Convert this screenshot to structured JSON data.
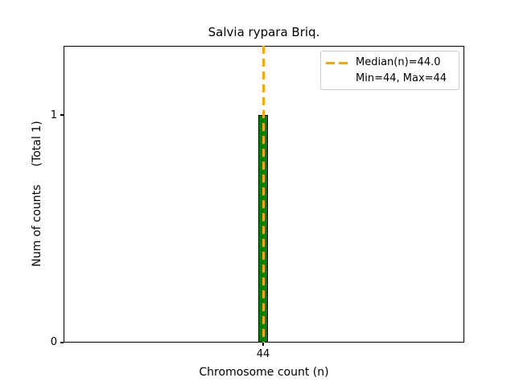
{
  "chart_data": {
    "type": "bar",
    "title": "Salvia rypara Briq.",
    "xlabel": "Chromosome count (n)",
    "ylabel": "Num of counts     (Total 1)",
    "categories": [
      44
    ],
    "values": [
      1
    ],
    "total_counts": 1,
    "median": 44.0,
    "min": 44,
    "max": 44,
    "x_tick_labels": [
      "44"
    ],
    "y_tick_labels": [
      "0",
      "1"
    ],
    "ylim": [
      0,
      1.3
    ],
    "grid": false,
    "legend_entries": [
      "Median(n)=44.0",
      "Min=44, Max=44"
    ],
    "legend_position": "upper right",
    "bar_color": "#008000",
    "bar_edge_color": "#000000",
    "median_line_color": "#FFA500",
    "median_line_style": "dashed",
    "legend_border_color": "#cccccc"
  }
}
